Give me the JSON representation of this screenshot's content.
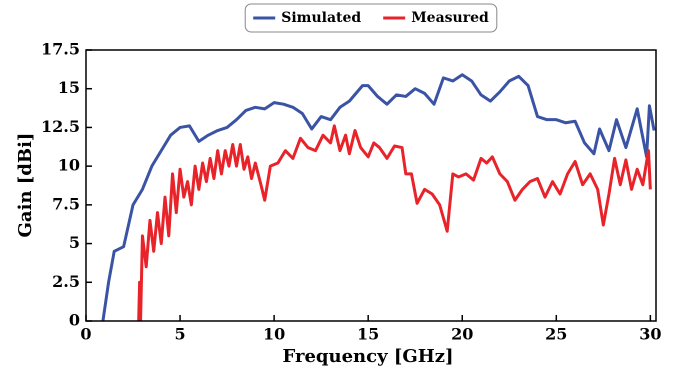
{
  "chart_data": {
    "type": "line",
    "xlabel": "Frequency [GHz]",
    "ylabel": "Gain [dBi]",
    "xlim": [
      0,
      30.3
    ],
    "ylim": [
      0,
      17.5
    ],
    "xticks": [
      0,
      5,
      10,
      15,
      20,
      25,
      30
    ],
    "yticks": [
      0,
      2.5,
      5,
      7.5,
      10,
      12.5,
      15,
      17.5
    ],
    "grid": false,
    "legend": "upper center",
    "series": [
      {
        "name": "Simulated",
        "color": "#3a53a4",
        "x": [
          0.9,
          1.2,
          1.5,
          2.0,
          2.5,
          3.0,
          3.5,
          4.0,
          4.5,
          5.0,
          5.5,
          6.0,
          6.5,
          7.0,
          7.5,
          8.0,
          8.5,
          9.0,
          9.5,
          10.0,
          10.5,
          11.0,
          11.5,
          12.0,
          12.5,
          13.0,
          13.5,
          14.0,
          14.7,
          15.0,
          15.5,
          16.0,
          16.5,
          17.0,
          17.5,
          18.0,
          18.5,
          19.0,
          19.5,
          20.0,
          20.5,
          21.0,
          21.5,
          22.0,
          22.5,
          23.0,
          23.5,
          24.0,
          24.5,
          25.0,
          25.5,
          26.0,
          26.5,
          27.0,
          27.3,
          27.8,
          28.2,
          28.7,
          29.3,
          29.8,
          29.95,
          30.2
        ],
        "values": [
          0,
          2.5,
          4.5,
          4.8,
          7.5,
          8.5,
          10,
          11,
          12,
          12.5,
          12.6,
          11.6,
          12,
          12.3,
          12.5,
          13,
          13.6,
          13.8,
          13.7,
          14.1,
          14,
          13.8,
          13.4,
          12.4,
          13.2,
          13,
          13.8,
          14.2,
          15.2,
          15.2,
          14.5,
          14,
          14.6,
          14.5,
          15,
          14.7,
          14,
          15.7,
          15.5,
          15.9,
          15.5,
          14.6,
          14.2,
          14.8,
          15.5,
          15.8,
          15.2,
          13.2,
          13,
          13,
          12.8,
          12.9,
          11.5,
          10.8,
          12.4,
          11,
          13,
          11.2,
          13.7,
          10.6,
          13.9,
          12.3
        ]
      },
      {
        "name": "Measured",
        "color": "#e8232a",
        "x": [
          2.8,
          2.85,
          2.9,
          3.0,
          3.2,
          3.4,
          3.6,
          3.8,
          4.0,
          4.2,
          4.4,
          4.6,
          4.8,
          5.0,
          5.2,
          5.4,
          5.6,
          5.8,
          6.0,
          6.2,
          6.4,
          6.6,
          6.8,
          7.0,
          7.2,
          7.4,
          7.6,
          7.8,
          8.0,
          8.2,
          8.4,
          8.6,
          8.8,
          9.0,
          9.3,
          9.5,
          9.8,
          10.2,
          10.6,
          11.0,
          11.4,
          11.8,
          12.2,
          12.6,
          13.0,
          13.2,
          13.5,
          13.8,
          14.0,
          14.3,
          14.6,
          15.0,
          15.3,
          15.6,
          16.0,
          16.4,
          16.8,
          17.0,
          17.3,
          17.6,
          18.0,
          18.4,
          18.8,
          19.2,
          19.5,
          19.8,
          20.2,
          20.6,
          21.0,
          21.3,
          21.6,
          22.0,
          22.4,
          22.8,
          23.2,
          23.6,
          24.0,
          24.4,
          24.8,
          25.2,
          25.6,
          26.0,
          26.4,
          26.8,
          27.2,
          27.5,
          27.8,
          28.1,
          28.4,
          28.7,
          29.0,
          29.3,
          29.6,
          29.9,
          30.0
        ],
        "values": [
          0,
          2.5,
          0,
          5.5,
          3.5,
          6.5,
          4.5,
          7,
          5,
          8,
          5.5,
          9.5,
          7,
          9.8,
          8,
          9,
          7.5,
          10,
          8.5,
          10.2,
          9,
          10.5,
          9.2,
          11,
          9.5,
          11,
          10,
          11.4,
          10,
          11.4,
          9.8,
          10.6,
          9.2,
          10.2,
          8.8,
          7.8,
          10,
          10.2,
          11,
          10.5,
          11.8,
          11.2,
          11,
          12,
          11.5,
          12.6,
          11,
          12,
          10.8,
          12.3,
          11.2,
          10.6,
          11.5,
          11.2,
          10.5,
          11.3,
          11.2,
          9.5,
          9.5,
          7.6,
          8.5,
          8.2,
          7.5,
          5.8,
          9.5,
          9.3,
          9.5,
          9.1,
          10.5,
          10.2,
          10.6,
          9.5,
          9,
          7.8,
          8.5,
          9,
          9.2,
          8,
          9,
          8.2,
          9.5,
          10.3,
          8.8,
          9.5,
          8.5,
          6.2,
          8.2,
          10.5,
          8.8,
          10.4,
          8.5,
          9.8,
          8.8,
          11,
          8.5
        ]
      }
    ]
  }
}
